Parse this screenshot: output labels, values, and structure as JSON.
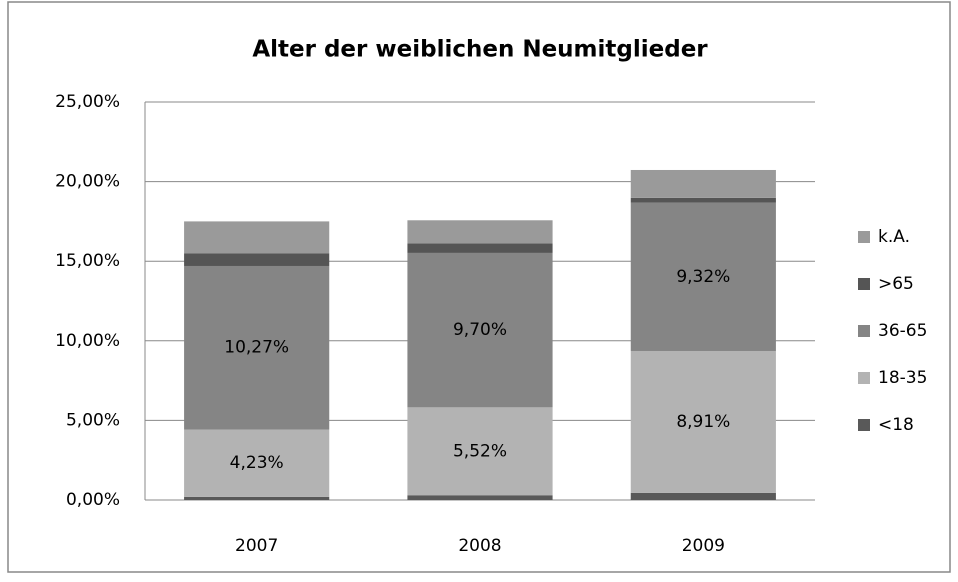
{
  "chart_data": {
    "type": "stacked_bar",
    "title": "Alter der weiblichen Neumitglieder",
    "categories": [
      "2007",
      "2008",
      "2009"
    ],
    "series": [
      {
        "name": "<18",
        "color": "#595959",
        "values": [
          0.2,
          0.3,
          0.45
        ]
      },
      {
        "name": "18-35",
        "color": "#b3b3b3",
        "values": [
          4.23,
          5.52,
          8.91
        ],
        "value_labels": [
          "4,23%",
          "5,52%",
          "8,91%"
        ]
      },
      {
        "name": "36-65",
        "color": "#858585",
        "values": [
          10.27,
          9.7,
          9.32
        ],
        "value_labels": [
          "10,27%",
          "9,70%",
          "9,32%"
        ]
      },
      {
        "name": ">65",
        "color": "#555555",
        "values": [
          0.8,
          0.6,
          0.3
        ]
      },
      {
        "name": "k.A.",
        "color": "#9a9a9a",
        "values": [
          2.0,
          1.45,
          1.75
        ]
      }
    ],
    "ylim": [
      0,
      25
    ],
    "yticks": [
      {
        "value": 0,
        "label": "0,00%"
      },
      {
        "value": 5,
        "label": "5,00%"
      },
      {
        "value": 10,
        "label": "10,00%"
      },
      {
        "value": 15,
        "label": "15,00%"
      },
      {
        "value": 20,
        "label": "20,00%"
      },
      {
        "value": 25,
        "label": "25,00%"
      }
    ],
    "grid": true,
    "legend": "right"
  }
}
